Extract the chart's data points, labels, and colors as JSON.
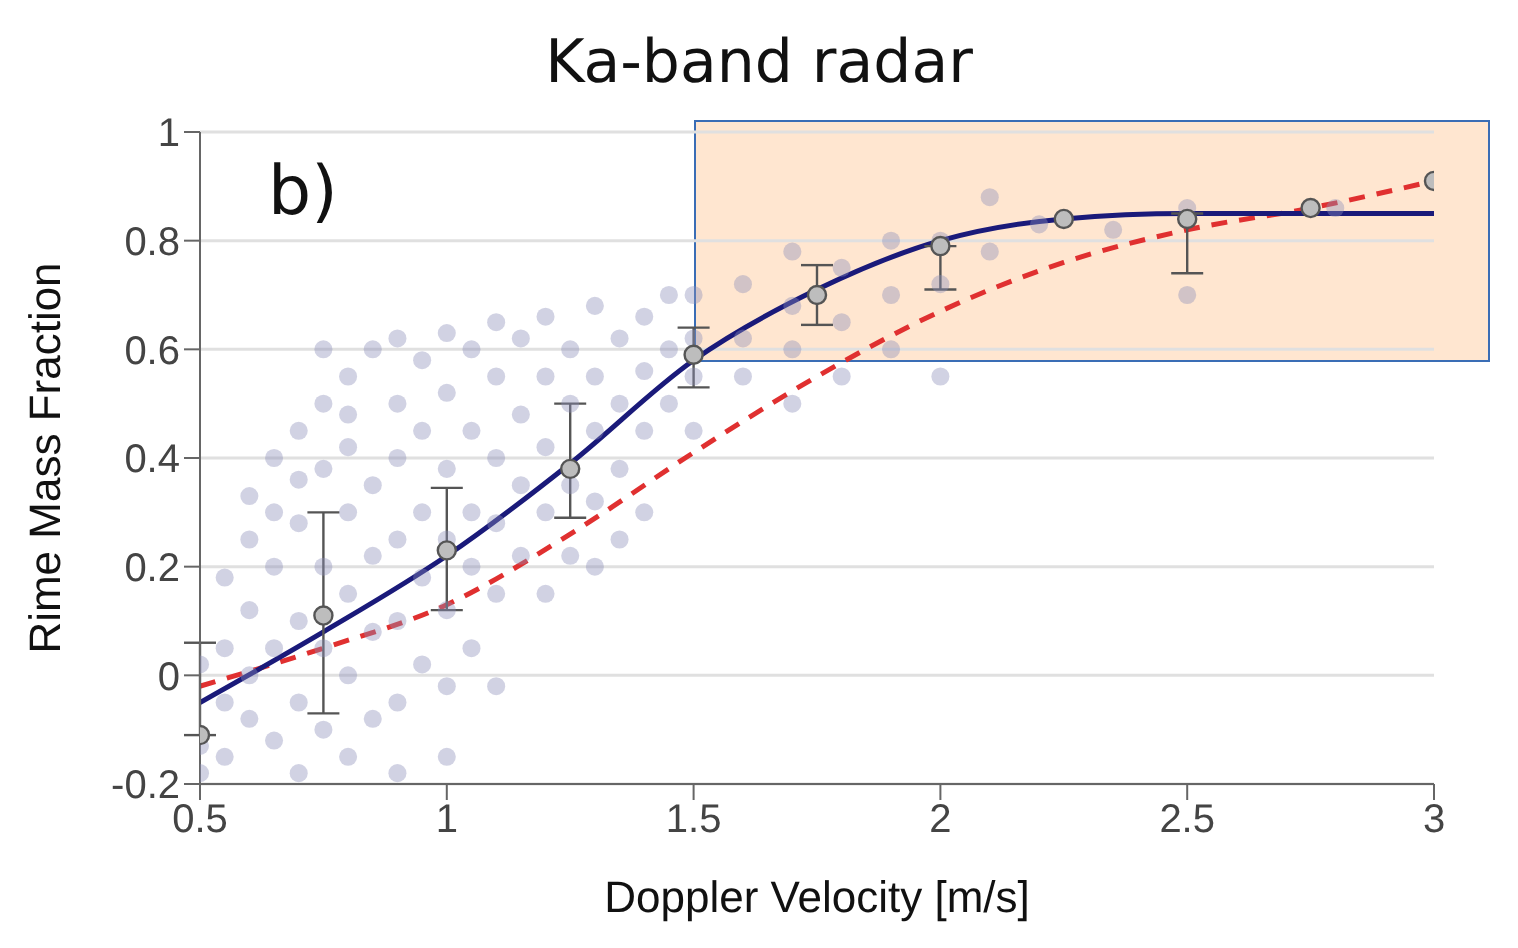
{
  "chart_data": {
    "type": "scatter",
    "title": "Ka-band radar",
    "xlabel": "Doppler Velocity [m/s]",
    "ylabel": "Rime Mass Fraction",
    "annotations": [
      "b)"
    ],
    "xlim": [
      0.5,
      3
    ],
    "ylim": [
      -0.2,
      1
    ],
    "xticks": [
      0.5,
      1,
      1.5,
      2,
      2.5,
      3
    ],
    "yticks": [
      -0.2,
      0,
      0.2,
      0.4,
      0.6,
      0.8,
      1
    ],
    "grid": "y",
    "legend": false,
    "series": [
      {
        "color": "#8c8fb8",
        "marker": "circle",
        "x": [
          0.5,
          0.5,
          0.5,
          0.55,
          0.55,
          0.55,
          0.55,
          0.6,
          0.6,
          0.6,
          0.6,
          0.6,
          0.65,
          0.65,
          0.65,
          0.65,
          0.65,
          0.7,
          0.7,
          0.7,
          0.7,
          0.7,
          0.7,
          0.75,
          0.75,
          0.75,
          0.75,
          0.75,
          0.75,
          0.8,
          0.8,
          0.8,
          0.8,
          0.8,
          0.8,
          0.8,
          0.85,
          0.85,
          0.85,
          0.85,
          0.85,
          0.9,
          0.9,
          0.9,
          0.9,
          0.9,
          0.9,
          0.9,
          0.95,
          0.95,
          0.95,
          0.95,
          0.95,
          1,
          1,
          1,
          1,
          1,
          1,
          1,
          1.05,
          1.05,
          1.05,
          1.05,
          1.05,
          1.1,
          1.1,
          1.1,
          1.1,
          1.1,
          1.1,
          1.15,
          1.15,
          1.15,
          1.15,
          1.2,
          1.2,
          1.2,
          1.2,
          1.2,
          1.25,
          1.25,
          1.25,
          1.25,
          1.3,
          1.3,
          1.3,
          1.3,
          1.3,
          1.35,
          1.35,
          1.35,
          1.35,
          1.4,
          1.4,
          1.4,
          1.4,
          1.45,
          1.45,
          1.45,
          1.5,
          1.5,
          1.5,
          1.5,
          1.6,
          1.6,
          1.6,
          1.7,
          1.7,
          1.7,
          1.7,
          1.8,
          1.8,
          1.8,
          1.9,
          1.9,
          1.9,
          2,
          2,
          2,
          2.1,
          2.1,
          2.2,
          2.35,
          2.5,
          2.5,
          2.8
        ],
        "values": [
          -0.13,
          -0.18,
          0.02,
          -0.05,
          0.05,
          0.18,
          -0.15,
          0.33,
          0.12,
          -0.08,
          0.25,
          0,
          0.4,
          0.2,
          0.05,
          -0.12,
          0.3,
          0.45,
          0.28,
          0.1,
          -0.05,
          -0.18,
          0.36,
          0.5,
          0.38,
          0.2,
          0.05,
          -0.1,
          0.6,
          0.55,
          0.42,
          0.3,
          0.15,
          0,
          -0.15,
          0.48,
          0.6,
          0.35,
          0.22,
          0.08,
          -0.08,
          0.62,
          0.5,
          0.4,
          0.25,
          0.1,
          -0.05,
          -0.18,
          0.58,
          0.45,
          0.3,
          0.18,
          0.02,
          0.63,
          0.52,
          0.38,
          0.25,
          0.12,
          -0.02,
          -0.15,
          0.6,
          0.45,
          0.3,
          0.2,
          0.05,
          0.65,
          0.55,
          0.4,
          0.28,
          0.15,
          -0.02,
          0.62,
          0.48,
          0.35,
          0.22,
          0.66,
          0.55,
          0.42,
          0.3,
          0.15,
          0.6,
          0.5,
          0.35,
          0.22,
          0.68,
          0.55,
          0.45,
          0.32,
          0.2,
          0.62,
          0.5,
          0.38,
          0.25,
          0.66,
          0.56,
          0.45,
          0.3,
          0.7,
          0.6,
          0.5,
          0.7,
          0.62,
          0.55,
          0.45,
          0.72,
          0.62,
          0.55,
          0.78,
          0.68,
          0.6,
          0.5,
          0.75,
          0.65,
          0.55,
          0.8,
          0.7,
          0.6,
          0.8,
          0.72,
          0.55,
          0.88,
          0.78,
          0.83,
          0.82,
          0.86,
          0.7,
          0.86
        ]
      },
      {
        "type": "line",
        "color": "#e03030",
        "line_style": "dashed",
        "marker": "none",
        "x": [
          0.5,
          0.75,
          1,
          1.25,
          1.5,
          1.75,
          2,
          2.25,
          2.5,
          2.75,
          3
        ],
        "values": [
          -0.02,
          0.05,
          0.13,
          0.26,
          0.41,
          0.55,
          0.67,
          0.76,
          0.82,
          0.86,
          0.91
        ]
      },
      {
        "type": "line",
        "color": "#1a1a7a",
        "line_style": "solid",
        "marker": "none",
        "x": [
          0.5,
          0.75,
          1,
          1.25,
          1.5,
          1.75,
          2,
          2.25,
          2.5,
          2.75,
          3
        ],
        "values": [
          -0.05,
          0.08,
          0.22,
          0.39,
          0.58,
          0.71,
          0.8,
          0.84,
          0.85,
          0.85,
          0.85
        ]
      },
      {
        "color": "#bdbdbd",
        "marker": "circle",
        "x": [
          0.5,
          0.75,
          1,
          1.25,
          1.5,
          1.75,
          2,
          2.25,
          2.5,
          2.75,
          3
        ],
        "values": [
          -0.11,
          0.11,
          0.23,
          0.38,
          0.59,
          0.7,
          0.79,
          0.84,
          0.84,
          0.86,
          0.91
        ],
        "errors": [
          [
            -0.11,
            0.06
          ],
          [
            -0.07,
            0.3
          ],
          [
            0.12,
            0.345
          ],
          [
            0.29,
            0.5
          ],
          [
            0.53,
            0.64
          ],
          [
            0.645,
            0.755
          ],
          [
            0.71,
            0.79
          ],
          null,
          [
            0.74,
            0.85
          ],
          null,
          null
        ]
      }
    ]
  }
}
